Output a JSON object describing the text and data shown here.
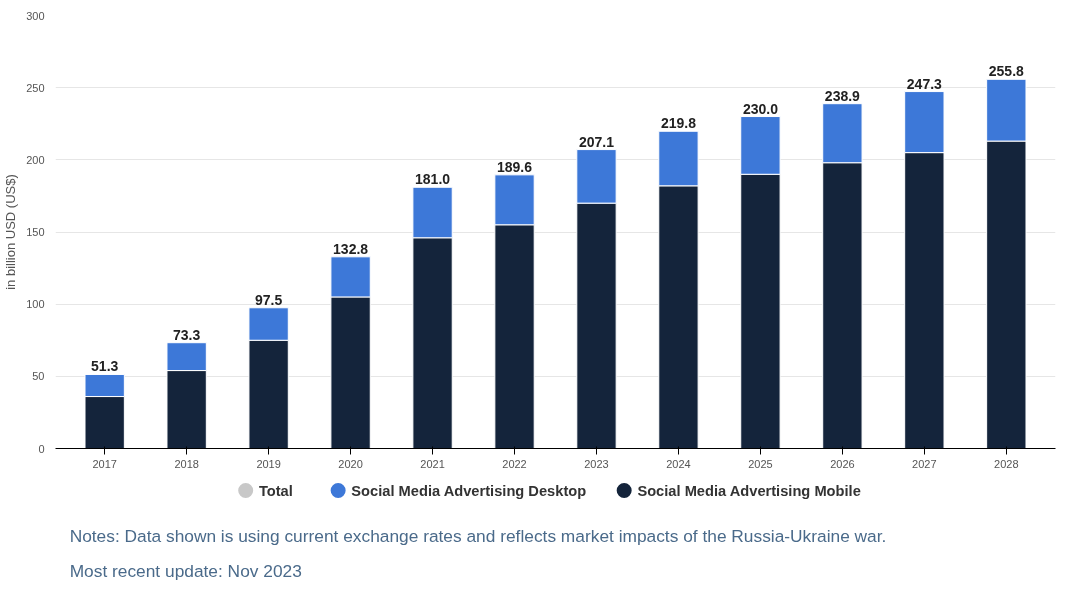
{
  "chart_data": {
    "type": "bar",
    "stacked": true,
    "categories": [
      "2017",
      "2018",
      "2019",
      "2020",
      "2021",
      "2022",
      "2023",
      "2024",
      "2025",
      "2026",
      "2027",
      "2028"
    ],
    "ylabel": "in billion USD (US$)",
    "ylim": [
      0,
      300
    ],
    "yticks": [
      0,
      50,
      100,
      150,
      200,
      250,
      300
    ],
    "grid": "y",
    "legend": "bottom",
    "series": [
      {
        "name": "Total",
        "color": "#c8c8c8",
        "values": [
          null,
          null,
          null,
          null,
          null,
          null,
          null,
          null,
          null,
          null,
          null,
          null
        ]
      },
      {
        "name": "Social Media Advertising Mobile",
        "color": "#14243b",
        "values": [
          36,
          54,
          75,
          105,
          146,
          155,
          170,
          182,
          190,
          198,
          205,
          213
        ]
      },
      {
        "name": "Social Media Advertising Desktop",
        "color": "#3d78d8",
        "values": [
          15.3,
          19.3,
          22.5,
          27.8,
          35.0,
          34.6,
          37.1,
          37.8,
          40.0,
          40.9,
          42.3,
          42.8
        ]
      }
    ],
    "totals": [
      "51.3",
      "73.3",
      "97.5",
      "132.8",
      "181.0",
      "189.6",
      "207.1",
      "219.8",
      "230.0",
      "238.9",
      "247.3",
      "255.8"
    ],
    "annotations": [
      "Notes: Data shown is using current exchange rates and reflects market impacts of the Russia-Ukraine war.",
      "Most recent update: Nov 2023"
    ]
  }
}
